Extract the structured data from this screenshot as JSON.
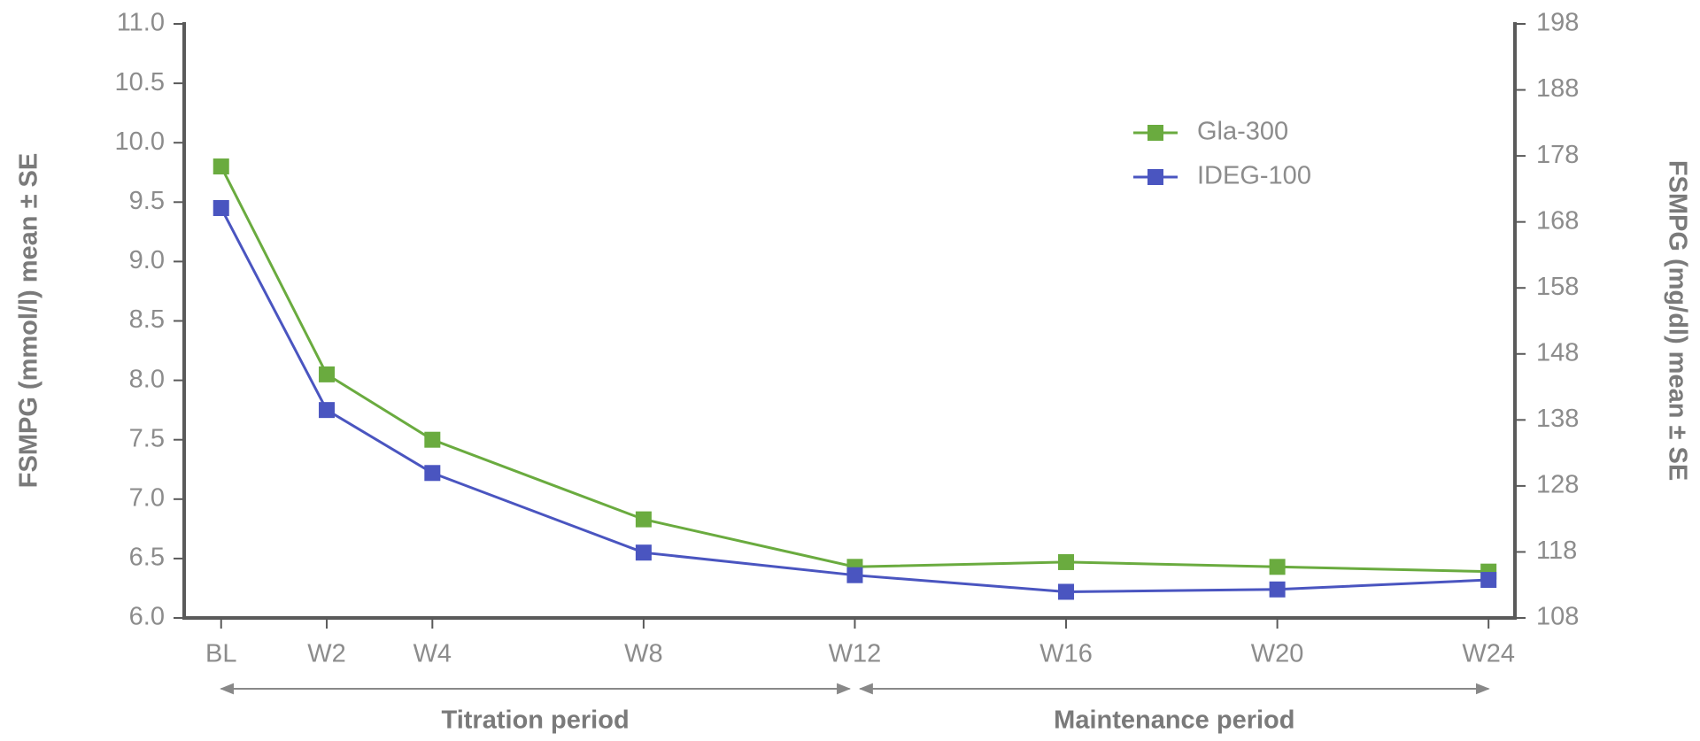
{
  "chart_data": {
    "type": "line",
    "x": [
      0,
      2,
      4,
      8,
      12,
      16,
      20,
      24
    ],
    "series": [
      {
        "name": "Gla-300",
        "color": "#6aab3f",
        "values": [
          9.8,
          8.05,
          7.5,
          6.83,
          6.43,
          6.47,
          6.43,
          6.39
        ]
      },
      {
        "name": "IDEG-100",
        "color": "#4a55c0",
        "values": [
          9.45,
          7.75,
          7.22,
          6.55,
          6.36,
          6.22,
          6.24,
          6.32
        ]
      }
    ],
    "xlim": [
      -0.7,
      24.5
    ],
    "xticks": [
      {
        "value": 0,
        "label": "BL"
      },
      {
        "value": 2,
        "label": "W2"
      },
      {
        "value": 4,
        "label": "W4"
      },
      {
        "value": 8,
        "label": "W8"
      },
      {
        "value": 12,
        "label": "W12"
      },
      {
        "value": 16,
        "label": "W16"
      },
      {
        "value": 20,
        "label": "W20"
      },
      {
        "value": 24,
        "label": "W24"
      }
    ],
    "ylim": [
      6.0,
      11.0
    ],
    "yticks": [
      {
        "value": 6.0,
        "label": "6.0"
      },
      6.5,
      {
        "value": 7.0,
        "label": "7.0"
      },
      7.5,
      {
        "value": 8.0,
        "label": "8.0"
      },
      8.5,
      {
        "value": 9.0,
        "label": "9.0"
      },
      9.5,
      {
        "value": 10.0,
        "label": "10.0"
      },
      10.5,
      {
        "value": 11.0,
        "label": "11.0"
      }
    ],
    "y2lim": [
      108,
      198
    ],
    "y2ticks": [
      108,
      118,
      128,
      138,
      148,
      158,
      168,
      178,
      188,
      198
    ],
    "ylabel": "FSMPG (mmol/l) mean ± SE",
    "y2label": "FSMPG (mg/dl) mean ± SE",
    "annotations": [
      "Titration period",
      "Maintenance period"
    ],
    "legend": "upper right"
  }
}
